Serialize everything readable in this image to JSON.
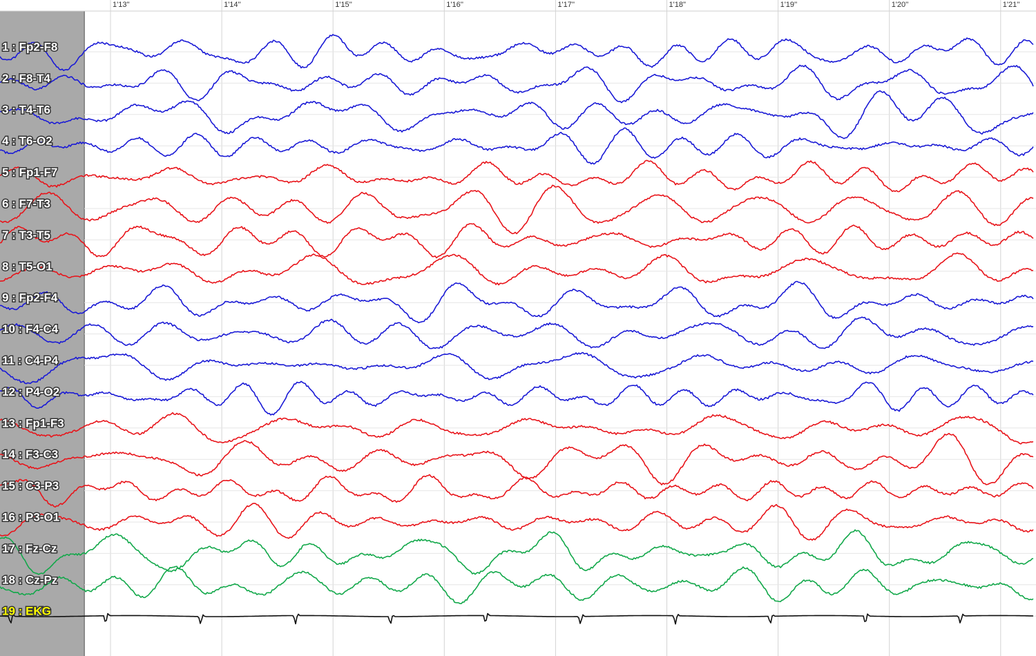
{
  "time_labels": [
    "1'13''",
    "1'14''",
    "1'15''",
    "1'16''",
    "1'17''",
    "1'18''",
    "1'19''",
    "1'20''",
    "1'21''"
  ],
  "channels": [
    {
      "label": "1 : Fp2-F8",
      "color": "#1a1ad6"
    },
    {
      "label": "2 : F8-T4",
      "color": "#1a1ad6"
    },
    {
      "label": "3 : T4-T6",
      "color": "#1a1ad6"
    },
    {
      "label": "4 : T6-O2",
      "color": "#1a1ad6"
    },
    {
      "label": "5 : Fp1-F7",
      "color": "#e8141a"
    },
    {
      "label": "6 : F7-T3",
      "color": "#e8141a"
    },
    {
      "label": "7 : T3-T5",
      "color": "#e8141a"
    },
    {
      "label": "8 : T5-O1",
      "color": "#e8141a"
    },
    {
      "label": "9 : Fp2-F4",
      "color": "#1a1ad6"
    },
    {
      "label": "10 : F4-C4",
      "color": "#1a1ad6"
    },
    {
      "label": "11 : C4-P4",
      "color": "#1a1ad6"
    },
    {
      "label": "12 : P4-O2",
      "color": "#1a1ad6"
    },
    {
      "label": "13 : Fp1-F3",
      "color": "#e8141a"
    },
    {
      "label": "14 : F3-C3",
      "color": "#e8141a"
    },
    {
      "label": "15 : C3-P3",
      "color": "#e8141a"
    },
    {
      "label": "16 : P3-O1",
      "color": "#e8141a"
    },
    {
      "label": "17 : Fz-Cz",
      "color": "#12a84a"
    },
    {
      "label": "18 : Cz-Pz",
      "color": "#12a84a"
    },
    {
      "label": "19 : EKG",
      "color": "#111111"
    }
  ]
}
